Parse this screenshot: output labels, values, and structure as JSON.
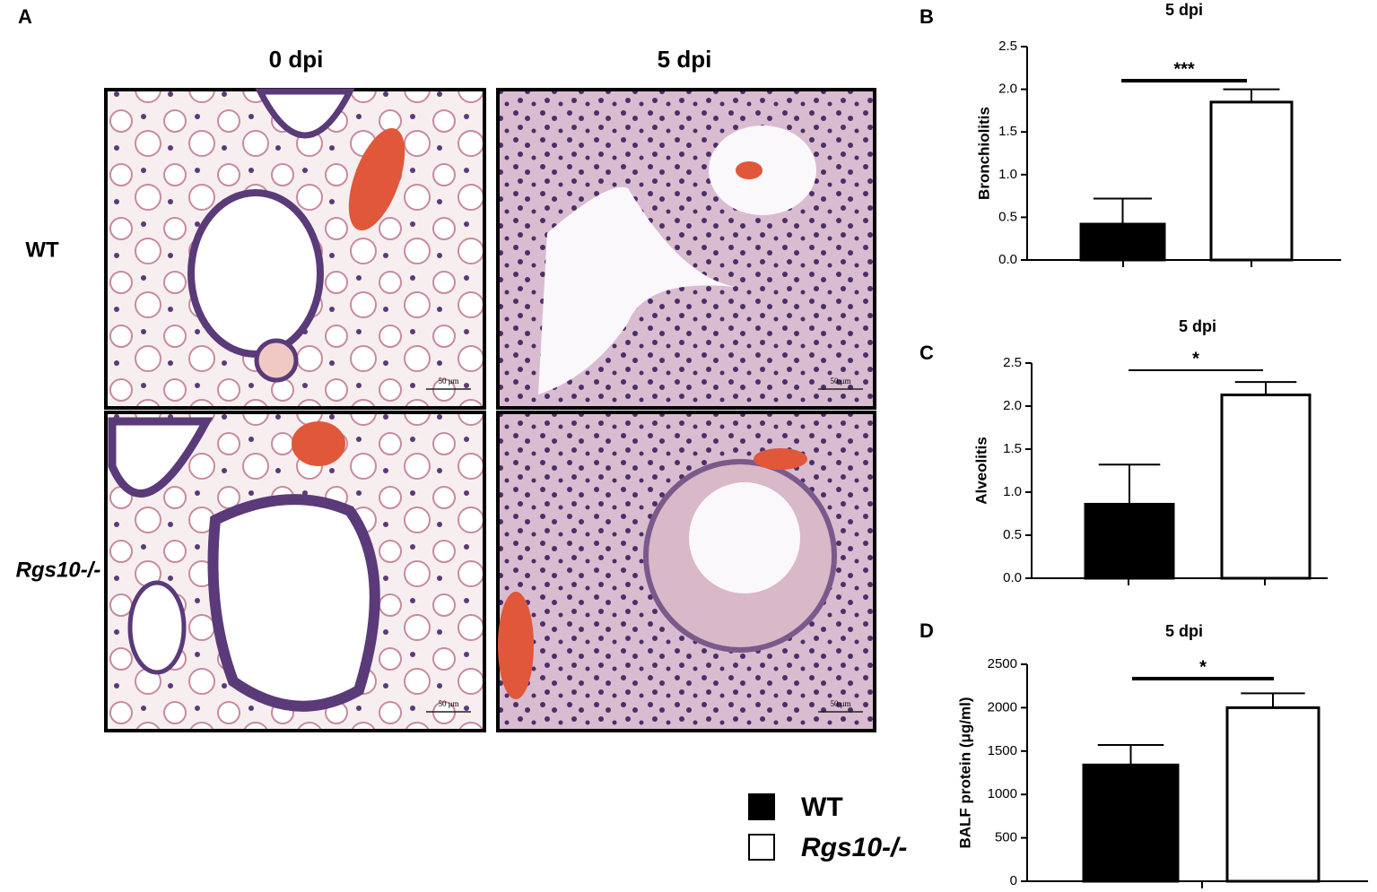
{
  "panel_a": {
    "label": "A",
    "columns": [
      "0 dpi",
      "5 dpi"
    ],
    "rows": [
      "WT",
      "Rgs10-/-"
    ],
    "scale_bar": "50 μm"
  },
  "legend": {
    "entries": [
      "WT",
      "Rgs10-/-"
    ],
    "colors": [
      "#000000",
      "#ffffff"
    ]
  },
  "chart_data": [
    {
      "type": "bar",
      "panel_label": "B",
      "title": "5 dpi",
      "y_label": "Bronchiolitis",
      "values": [
        0.42,
        1.85
      ],
      "errors": [
        0.3,
        0.15
      ],
      "colors": [
        "#000000",
        "#ffffff"
      ],
      "ylim": [
        0,
        2.5
      ],
      "yticks": [
        {
          "value": 0,
          "label": "0.0"
        },
        0.5,
        {
          "value": 1,
          "label": "1.0"
        },
        1.5,
        {
          "value": 2,
          "label": "2.0"
        },
        2.5
      ],
      "significance": "***"
    },
    {
      "type": "bar",
      "panel_label": "C",
      "title": "5 dpi",
      "y_label": "Alveolitis",
      "values": [
        0.86,
        2.13
      ],
      "errors": [
        0.46,
        0.15
      ],
      "colors": [
        "#000000",
        "#ffffff"
      ],
      "ylim": [
        0,
        2.5
      ],
      "yticks": [
        {
          "value": 0,
          "label": "0.0"
        },
        0.5,
        {
          "value": 1,
          "label": "1.0"
        },
        1.5,
        {
          "value": 2,
          "label": "2.0"
        },
        2.5
      ],
      "significance": "*"
    },
    {
      "type": "bar",
      "panel_label": "D",
      "title": "5 dpi",
      "y_label": "BALF protein (μg/ml)",
      "values": [
        1340,
        2000
      ],
      "errors": [
        230,
        165
      ],
      "colors": [
        "#000000",
        "#ffffff"
      ],
      "ylim": [
        0,
        2500
      ],
      "yticks": [
        0,
        500,
        1000,
        1500,
        2000,
        2500
      ],
      "significance": "*"
    }
  ]
}
